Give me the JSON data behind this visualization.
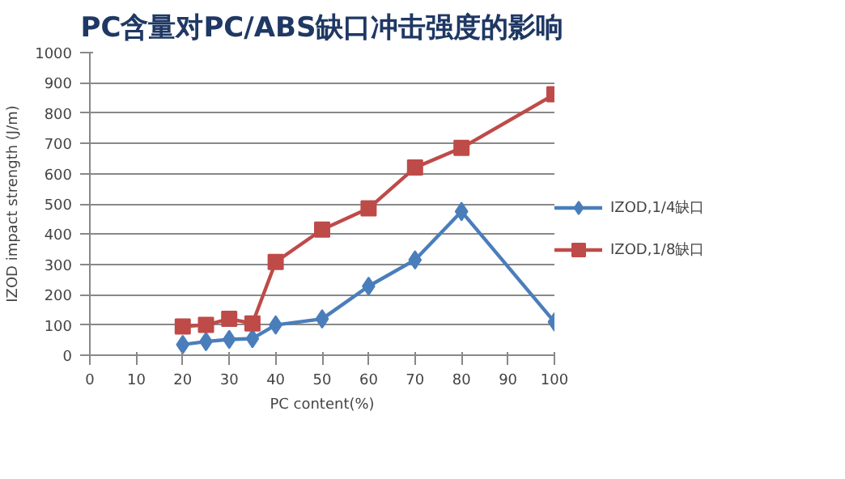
{
  "chart_data": {
    "type": "line",
    "title": "PC含量对PC/ABS缺口冲击强度的影响",
    "xlabel": "PC content(%)",
    "ylabel": "IZOD impact strength (J/m)",
    "x": [
      20,
      25,
      30,
      35,
      40,
      50,
      60,
      70,
      80,
      100
    ],
    "series": [
      {
        "name": "IZOD,1/4缺口",
        "color": "#4a7ebb",
        "marker": "diamond",
        "values": [
          35,
          45,
          52,
          55,
          100,
          120,
          228,
          315,
          475,
          110
        ]
      },
      {
        "name": "IZOD,1/8缺口",
        "color": "#be4b48",
        "marker": "square",
        "values": [
          95,
          100,
          120,
          105,
          308,
          415,
          485,
          620,
          685,
          862
        ]
      }
    ],
    "xlim": [
      0,
      100
    ],
    "xticks": [
      0,
      10,
      20,
      30,
      40,
      50,
      60,
      70,
      80,
      90,
      100
    ],
    "ylim": [
      0,
      1000
    ],
    "yticks": [
      0,
      100,
      200,
      300,
      400,
      500,
      600,
      700,
      800,
      900,
      1000
    ],
    "grid": "y",
    "legend": "right",
    "line_style": "solid"
  }
}
